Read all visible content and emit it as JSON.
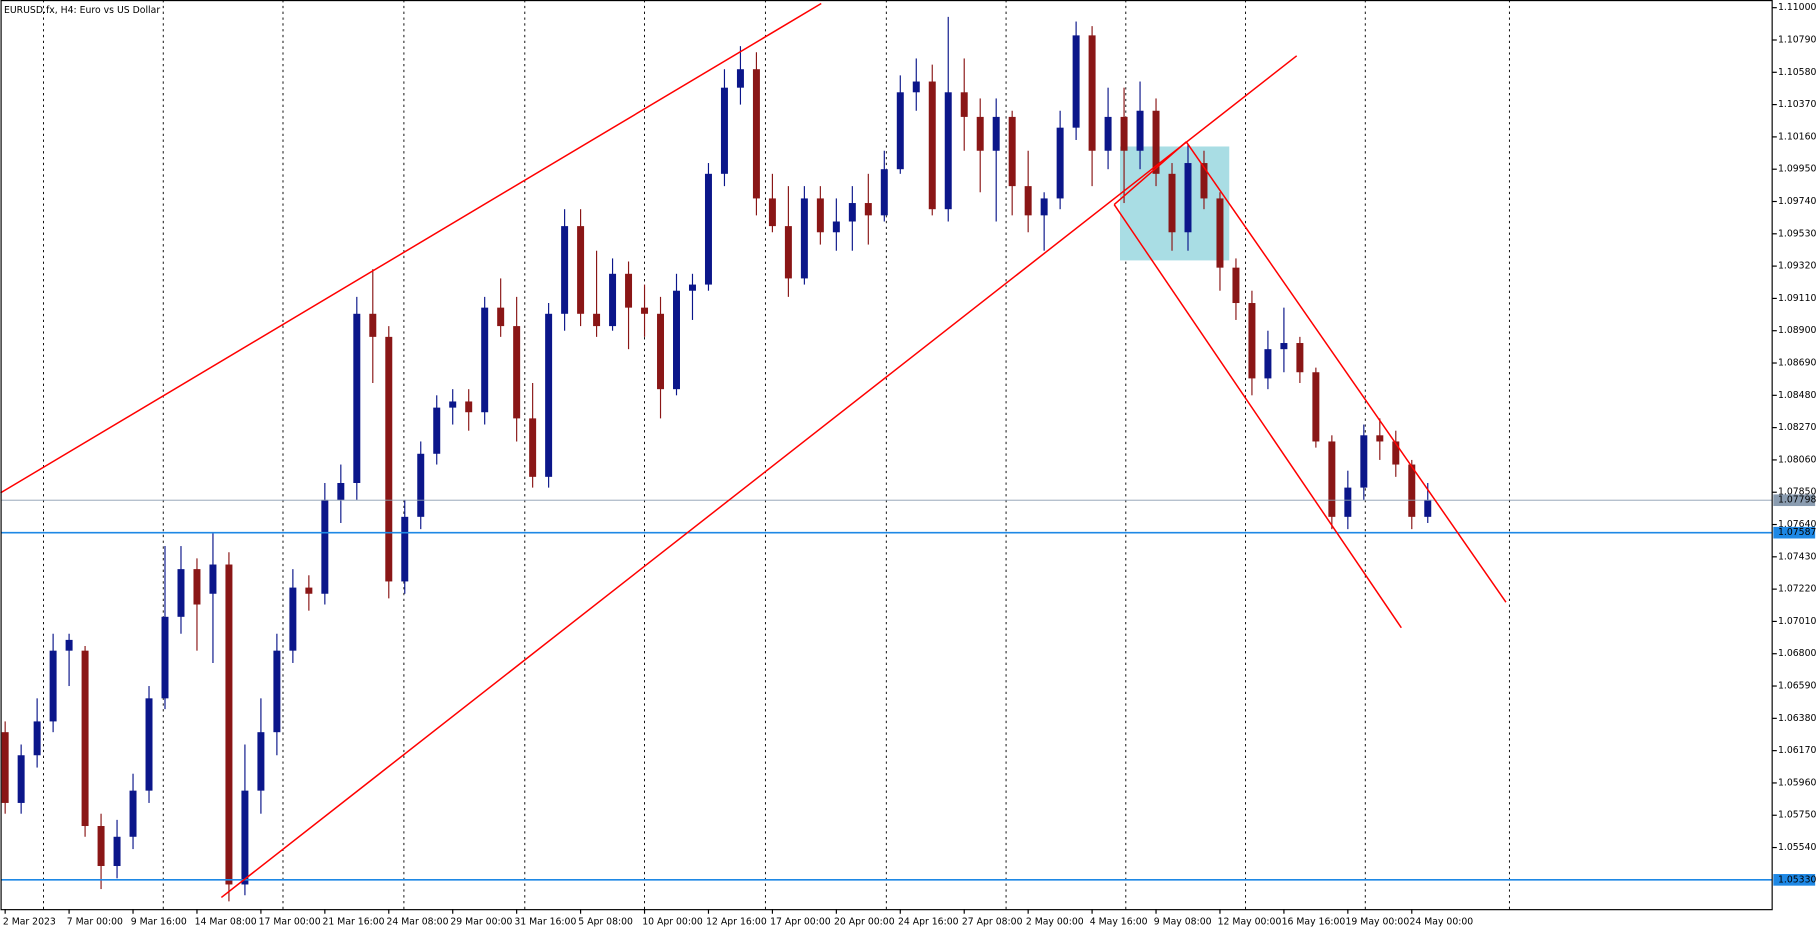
{
  "chart_data": {
    "type": "candlestick",
    "title": "EURUSD.fx, H4:  Euro vs US Dollar",
    "up_color": "#0b168a",
    "down_color": "#8a1616",
    "ylim": [
      1.0514,
      1.1105
    ],
    "yticks": [
      {
        "value": 1.11,
        "label": "1.11000"
      },
      {
        "value": 1.1079,
        "label": "1.10790"
      },
      {
        "value": 1.1058,
        "label": "1.10580"
      },
      {
        "value": 1.1037,
        "label": "1.10370"
      },
      {
        "value": 1.1016,
        "label": "1.10160"
      },
      {
        "value": 1.0995,
        "label": "1.09950"
      },
      {
        "value": 1.0974,
        "label": "1.09740"
      },
      {
        "value": 1.0953,
        "label": "1.09530"
      },
      {
        "value": 1.0932,
        "label": "1.09320"
      },
      {
        "value": 1.0911,
        "label": "1.09110"
      },
      {
        "value": 1.089,
        "label": "1.08900"
      },
      {
        "value": 1.0869,
        "label": "1.08690"
      },
      {
        "value": 1.0848,
        "label": "1.08480"
      },
      {
        "value": 1.0827,
        "label": "1.08270"
      },
      {
        "value": 1.0806,
        "label": "1.08060"
      },
      {
        "value": 1.0785,
        "label": "1.07850"
      },
      {
        "value": 1.0764,
        "label": "1.07640"
      },
      {
        "value": 1.0743,
        "label": "1.07430"
      },
      {
        "value": 1.0722,
        "label": "1.07220"
      },
      {
        "value": 1.0701,
        "label": "1.07010"
      },
      {
        "value": 1.068,
        "label": "1.06800"
      },
      {
        "value": 1.0659,
        "label": "1.06590"
      },
      {
        "value": 1.0638,
        "label": "1.06380"
      },
      {
        "value": 1.0617,
        "label": "1.06170"
      },
      {
        "value": 1.0596,
        "label": "1.05960"
      },
      {
        "value": 1.0575,
        "label": "1.05750"
      },
      {
        "value": 1.0554,
        "label": "1.05540"
      }
    ],
    "current_price": {
      "value": 1.07798,
      "color": "#8a9cb0"
    },
    "hlines": [
      {
        "value": 1.07587,
        "color": "#1e88e5"
      },
      {
        "value": 1.0533,
        "label": "1.05330",
        "color": "#1e88e5"
      }
    ],
    "categories": [
      "2 Mar 2023",
      null,
      null,
      null,
      "7 Mar 00:00",
      null,
      null,
      null,
      "9 Mar 16:00",
      null,
      null,
      null,
      "14 Mar 08:00",
      null,
      null,
      null,
      "17 Mar 00:00",
      null,
      null,
      null,
      "21 Mar 16:00",
      null,
      null,
      null,
      "24 Mar 08:00",
      null,
      null,
      null,
      "29 Mar 00:00",
      null,
      null,
      null,
      "31 Mar 16:00",
      null,
      null,
      null,
      "5 Apr 08:00",
      null,
      null,
      null,
      "10 Apr 00:00",
      null,
      null,
      null,
      "12 Apr 16:00",
      null,
      null,
      null,
      "17 Apr 00:00",
      null,
      null,
      null,
      "20 Apr 00:00",
      null,
      null,
      null,
      "24 Apr 16:00",
      null,
      null,
      null,
      "27 Apr 08:00",
      null,
      null,
      null,
      "2 May 00:00",
      null,
      null,
      null,
      "4 May 16:00",
      null,
      null,
      null,
      "9 May 08:00",
      null,
      null,
      null,
      "12 May 00:00",
      null,
      null,
      null,
      "16 May 16:00",
      null,
      null,
      null,
      "19 May 00:00",
      null,
      null,
      null,
      "24 May 00:00",
      null
    ],
    "open": [
      1.0629,
      1.0583,
      1.0614,
      1.0636,
      1.0682,
      1.0682,
      1.0568,
      1.0542,
      1.0561,
      1.0591,
      1.0651,
      1.0704,
      1.0735,
      1.0719,
      1.0738,
      1.053,
      1.0591,
      1.0629,
      1.0682,
      1.0723,
      1.0719,
      1.078,
      1.0791,
      1.0901,
      1.0886,
      1.0727,
      1.0769,
      1.081,
      1.084,
      1.0844,
      1.0837,
      1.0905,
      1.0893,
      1.0833,
      1.0795,
      1.0901,
      1.0958,
      1.0901,
      1.0893,
      1.0927,
      1.0905,
      1.0901,
      1.0852,
      1.0916,
      1.092,
      1.0992,
      1.1048,
      1.106,
      1.0976,
      1.0958,
      1.0924,
      1.0976,
      1.0954,
      1.0961,
      1.0973,
      1.0965,
      1.0995,
      1.1045,
      1.1052,
      1.0969,
      1.1045,
      1.1029,
      1.1007,
      1.1029,
      1.0984,
      1.0965,
      1.0976,
      1.1022,
      1.1082,
      1.1007,
      1.1029,
      1.1007,
      1.1033,
      1.0992,
      1.0954,
      1.0999,
      1.0976,
      1.0931,
      1.0908,
      1.0859,
      1.0878,
      1.0882,
      1.0863,
      1.0818,
      1.0769,
      1.0788,
      1.0822,
      1.0818,
      1.0803,
      1.0769
    ],
    "high": [
      1.0636,
      1.0621,
      1.0651,
      1.0693,
      1.0693,
      1.0685,
      1.0576,
      1.0572,
      1.0602,
      1.0659,
      1.075,
      1.075,
      1.0742,
      1.0759,
      1.0746,
      1.0621,
      1.0651,
      1.0693,
      1.0735,
      1.0731,
      1.0791,
      1.0803,
      1.0912,
      1.093,
      1.0893,
      1.078,
      1.0818,
      1.0848,
      1.0852,
      1.0852,
      1.0912,
      1.0924,
      1.0912,
      1.0856,
      1.0908,
      1.0969,
      1.0969,
      1.0942,
      1.0937,
      1.0935,
      1.092,
      1.0912,
      1.0927,
      1.0927,
      1.0999,
      1.106,
      1.1075,
      1.1071,
      1.0992,
      1.0984,
      1.0984,
      1.0984,
      1.0976,
      1.0984,
      1.0992,
      1.1007,
      1.1056,
      1.1067,
      1.1063,
      1.1094,
      1.1067,
      1.1041,
      1.1041,
      1.1033,
      1.1007,
      1.098,
      1.1033,
      1.1091,
      1.1088,
      1.1048,
      1.1048,
      1.1052,
      1.1041,
      1.0999,
      1.1011,
      1.1007,
      1.098,
      1.0937,
      1.0916,
      1.089,
      1.0905,
      1.0886,
      1.0866,
      1.0822,
      1.0799,
      1.0829,
      1.0833,
      1.0825,
      1.0806,
      1.0791
    ],
    "low": [
      1.0576,
      1.0576,
      1.0606,
      1.0629,
      1.0659,
      1.0561,
      1.0527,
      1.0534,
      1.0553,
      1.0583,
      1.0644,
      1.0693,
      1.0682,
      1.0674,
      1.0519,
      1.0523,
      1.0576,
      1.0614,
      1.0674,
      1.0708,
      1.0712,
      1.0765,
      1.078,
      1.0856,
      1.0716,
      1.0719,
      1.0761,
      1.0803,
      1.0829,
      1.0825,
      1.0829,
      1.0886,
      1.0818,
      1.0788,
      1.0788,
      1.089,
      1.0893,
      1.0886,
      1.089,
      1.0878,
      1.0886,
      1.0833,
      1.0848,
      1.0897,
      1.0916,
      1.0984,
      1.1037,
      1.0965,
      1.0954,
      1.0912,
      1.092,
      1.0946,
      1.0942,
      1.0942,
      1.0946,
      1.0961,
      1.0992,
      1.1033,
      1.0965,
      1.0961,
      1.1007,
      1.098,
      1.0961,
      1.0965,
      1.0954,
      1.0942,
      1.0969,
      1.1014,
      1.0984,
      1.0995,
      1.0973,
      1.0995,
      1.0984,
      1.0942,
      1.0942,
      1.0969,
      1.0916,
      1.0897,
      1.0848,
      1.0852,
      1.0863,
      1.0856,
      1.0814,
      1.0761,
      1.0761,
      1.078,
      1.0806,
      1.0795,
      1.0761,
      1.0765
    ],
    "close": [
      1.0583,
      1.0614,
      1.0636,
      1.0682,
      1.0689,
      1.0568,
      1.0542,
      1.0561,
      1.0591,
      1.0651,
      1.0704,
      1.0735,
      1.0712,
      1.0738,
      1.053,
      1.0591,
      1.0629,
      1.0682,
      1.0723,
      1.0719,
      1.078,
      1.0791,
      1.0901,
      1.0886,
      1.0727,
      1.0769,
      1.081,
      1.084,
      1.0844,
      1.0837,
      1.0905,
      1.0893,
      1.0833,
      1.0795,
      1.0901,
      1.0958,
      1.0901,
      1.0893,
      1.0927,
      1.0905,
      1.0901,
      1.0852,
      1.0916,
      1.092,
      1.0992,
      1.1048,
      1.106,
      1.0976,
      1.0958,
      1.0924,
      1.0976,
      1.0954,
      1.0961,
      1.0973,
      1.0965,
      1.0995,
      1.1045,
      1.1052,
      1.0969,
      1.1045,
      1.1029,
      1.1007,
      1.1029,
      1.0984,
      1.0965,
      1.0976,
      1.1022,
      1.1082,
      1.1007,
      1.1029,
      1.1007,
      1.1033,
      1.0992,
      1.0954,
      1.0999,
      1.0976,
      1.0931,
      1.0908,
      1.0859,
      1.0878,
      1.0882,
      1.0863,
      1.0818,
      1.0769,
      1.0788,
      1.0822,
      1.0818,
      1.0803,
      1.0769,
      1.078
    ]
  }
}
